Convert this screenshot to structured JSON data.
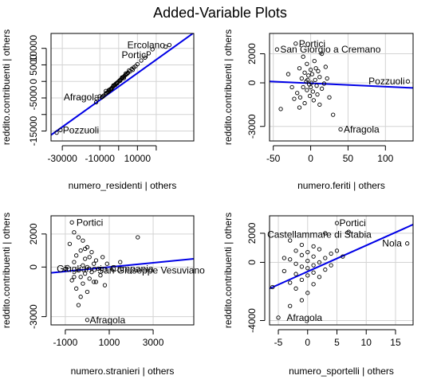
{
  "page_title": "Added-Variable Plots",
  "chart_data": [
    {
      "type": "scatter",
      "xlabel": "numero_residenti | others",
      "ylabel": "reddito.contribuenti | others",
      "xlim": [
        -36000,
        40000
      ],
      "ylim": [
        -18000,
        14500
      ],
      "xticks": [
        -30000,
        -10000,
        0,
        10000,
        20000
      ],
      "xtick_labels": [
        "-30000",
        "-10000",
        "",
        "10000",
        ""
      ],
      "yticks": [
        -15000,
        -10000,
        -5000,
        0,
        5000,
        10000
      ],
      "ytick_labels": [
        "-15000",
        "",
        "-5000",
        "0",
        "5000",
        "10000"
      ],
      "grid": true,
      "fit_line": {
        "x": [
          -36000,
          40000
        ],
        "y": [
          -16200,
          14700
        ]
      },
      "points": [
        [
          -33000,
          -15500
        ],
        [
          -31000,
          -14700
        ],
        [
          -12000,
          -6300
        ],
        [
          -9000,
          -4800
        ],
        [
          -8000,
          -4300
        ],
        [
          -7000,
          -3800
        ],
        [
          -6500,
          -3500
        ],
        [
          -6000,
          -3300
        ],
        [
          -5500,
          -3100
        ],
        [
          -5000,
          -2800
        ],
        [
          -4500,
          -2400
        ],
        [
          -4000,
          -2200
        ],
        [
          -3500,
          -1900
        ],
        [
          -3000,
          -1600
        ],
        [
          -2500,
          -1300
        ],
        [
          -2000,
          -1000
        ],
        [
          -1500,
          -700
        ],
        [
          -1000,
          -500
        ],
        [
          -500,
          -250
        ],
        [
          0,
          0
        ],
        [
          500,
          300
        ],
        [
          1000,
          500
        ],
        [
          1500,
          800
        ],
        [
          2000,
          1100
        ],
        [
          2500,
          1300
        ],
        [
          3000,
          1600
        ],
        [
          3500,
          1900
        ],
        [
          4000,
          2100
        ],
        [
          5000,
          2600
        ],
        [
          6000,
          3000
        ],
        [
          7000,
          3800
        ],
        [
          8000,
          4200
        ],
        [
          9000,
          4600
        ],
        [
          10000,
          5200
        ],
        [
          12000,
          6300
        ],
        [
          14000,
          7200
        ],
        [
          16000,
          8500
        ],
        [
          18000,
          9700
        ],
        [
          25000,
          10500
        ],
        [
          27000,
          11000
        ],
        [
          -10000,
          -4500
        ],
        [
          -8500,
          -4600
        ],
        [
          -6800,
          -2900
        ],
        [
          -5200,
          -2600
        ],
        [
          -3800,
          -2300
        ],
        [
          -2800,
          -1200
        ],
        [
          -1800,
          -1100
        ],
        [
          -800,
          -600
        ],
        [
          800,
          200
        ],
        [
          1800,
          1200
        ],
        [
          2800,
          1000
        ],
        [
          3800,
          2400
        ],
        [
          4500,
          2300
        ],
        [
          5500,
          3300
        ],
        [
          7500,
          3500
        ]
      ],
      "annotations": [
        {
          "label": "Ercolano",
          "x": 26000,
          "y": 11000,
          "anchor": "end"
        },
        {
          "label": "Portici",
          "x": 17000,
          "y": 8000,
          "anchor": "end"
        },
        {
          "label": "Afragola",
          "x": -9000,
          "y": -4700,
          "anchor": "end"
        },
        {
          "label": "Pozzuoli",
          "x": -31000,
          "y": -14700,
          "anchor": "start"
        }
      ]
    },
    {
      "type": "scatter",
      "xlabel": "numero.feriti | others",
      "ylabel": "reddito.contribuenti | others",
      "xlim": [
        -55,
        137
      ],
      "ylim": [
        -4000,
        3400
      ],
      "xticks": [
        -50,
        0,
        50,
        100
      ],
      "xtick_labels": [
        "-50",
        "0",
        "50",
        "100"
      ],
      "yticks": [
        -3000,
        0,
        2000
      ],
      "ytick_labels": [
        "-3000",
        "0",
        "2000"
      ],
      "grid": true,
      "fit_line": {
        "x": [
          -55,
          137
        ],
        "y": [
          100,
          -350
        ]
      },
      "points": [
        [
          -20,
          2700
        ],
        [
          -45,
          2300
        ],
        [
          15,
          2000
        ],
        [
          -10,
          1800
        ],
        [
          5,
          1500
        ],
        [
          -5,
          1300
        ],
        [
          20,
          1100
        ],
        [
          -15,
          1000
        ],
        [
          0,
          900
        ],
        [
          10,
          800
        ],
        [
          -8,
          700
        ],
        [
          2,
          600
        ],
        [
          -3,
          500
        ],
        [
          12,
          400
        ],
        [
          -12,
          300
        ],
        [
          6,
          200
        ],
        [
          -6,
          100
        ],
        [
          1,
          0
        ],
        [
          -2,
          -100
        ],
        [
          8,
          -200
        ],
        [
          -10,
          -300
        ],
        [
          15,
          -400
        ],
        [
          -5,
          -500
        ],
        [
          3,
          -600
        ],
        [
          -18,
          -700
        ],
        [
          9,
          -800
        ],
        [
          -1,
          -900
        ],
        [
          25,
          -1000
        ],
        [
          -22,
          -1100
        ],
        [
          4,
          -1200
        ],
        [
          -8,
          -1400
        ],
        [
          12,
          -1500
        ],
        [
          -15,
          -1700
        ],
        [
          -40,
          -1800
        ],
        [
          30,
          -2200
        ],
        [
          40,
          -3200
        ],
        [
          130,
          100
        ],
        [
          -30,
          600
        ],
        [
          18,
          -50
        ],
        [
          -25,
          -300
        ],
        [
          7,
          1000
        ],
        [
          -14,
          -1000
        ],
        [
          22,
          300
        ],
        [
          0,
          -300
        ],
        [
          -4,
          200
        ]
      ],
      "annotations": [
        {
          "label": "Portici",
          "x": -19,
          "y": 2700,
          "anchor": "start"
        },
        {
          "label": "San Giorgio a Cremano",
          "x": -44,
          "y": 2300,
          "anchor": "start"
        },
        {
          "label": "Pozzuoli",
          "x": 129,
          "y": 100,
          "anchor": "end"
        },
        {
          "label": "Afragola",
          "x": 41,
          "y": -3200,
          "anchor": "start"
        }
      ]
    },
    {
      "type": "scatter",
      "xlabel": "numero.stranieri | others",
      "ylabel": "reddito.contribuenti | others",
      "xlim": [
        -1650,
        4850
      ],
      "ylim": [
        -3500,
        3100
      ],
      "xticks": [
        -1000,
        1000,
        3000
      ],
      "xtick_labels": [
        "-1000",
        "1000",
        "3000"
      ],
      "yticks": [
        -3000,
        0,
        2000
      ],
      "ytick_labels": [
        "-3000",
        "0",
        "2000"
      ],
      "grid": true,
      "fit_line": {
        "x": [
          -1650,
          4850
        ],
        "y": [
          -350,
          500
        ]
      },
      "points": [
        [
          -700,
          2700
        ],
        [
          -600,
          2100
        ],
        [
          -400,
          1800
        ],
        [
          -200,
          1600
        ],
        [
          -800,
          1400
        ],
        [
          0,
          1200
        ],
        [
          -300,
          1000
        ],
        [
          200,
          900
        ],
        [
          -500,
          700
        ],
        [
          100,
          600
        ],
        [
          -100,
          500
        ],
        [
          400,
          400
        ],
        [
          -600,
          300
        ],
        [
          300,
          200
        ],
        [
          -200,
          100
        ],
        [
          0,
          0
        ],
        [
          500,
          -100
        ],
        [
          -400,
          -200
        ],
        [
          200,
          -300
        ],
        [
          -100,
          -400
        ],
        [
          600,
          -500
        ],
        [
          -300,
          -600
        ],
        [
          100,
          -700
        ],
        [
          -700,
          -800
        ],
        [
          300,
          -900
        ],
        [
          -200,
          -1000
        ],
        [
          800,
          -1100
        ],
        [
          -500,
          -1300
        ],
        [
          0,
          -1500
        ],
        [
          -300,
          -1800
        ],
        [
          -400,
          -2300
        ],
        [
          0,
          -3200
        ],
        [
          2300,
          1800
        ],
        [
          1500,
          300
        ],
        [
          900,
          200
        ],
        [
          -900,
          0
        ],
        [
          -1000,
          -100
        ],
        [
          1200,
          -100
        ],
        [
          700,
          600
        ],
        [
          -100,
          1100
        ],
        [
          400,
          -900
        ],
        [
          -600,
          -600
        ]
      ],
      "annotations": [
        {
          "label": "Portici",
          "x": -600,
          "y": 2700,
          "anchor": "start"
        },
        {
          "label": "Giugliano in Campania",
          "x": -1500,
          "y": -100,
          "anchor": "start"
        },
        {
          "label": "San Giuseppe Vesuviano",
          "x": 350,
          "y": -200,
          "anchor": "start"
        },
        {
          "label": "Afragola",
          "x": 0,
          "y": -3200,
          "anchor": "start"
        }
      ]
    },
    {
      "type": "scatter",
      "xlabel": "numero_sportelli | others",
      "ylabel": "reddito.contribuenti | others",
      "xlim": [
        -6.5,
        18
      ],
      "ylim": [
        -4300,
        3200
      ],
      "xticks": [
        -5,
        0,
        5,
        10,
        15
      ],
      "xtick_labels": [
        "-5",
        "0",
        "5",
        "10",
        "15"
      ],
      "yticks": [
        -4000,
        0,
        2000
      ],
      "ytick_labels": [
        "-4000",
        "0",
        "2000"
      ],
      "grid": true,
      "fit_line": {
        "x": [
          -6.5,
          18
        ],
        "y": [
          -1800,
          2600
        ]
      },
      "points": [
        [
          5,
          2700
        ],
        [
          3,
          2000
        ],
        [
          7,
          2100
        ],
        [
          17,
          1300
        ],
        [
          -3,
          1500
        ],
        [
          -1,
          1200
        ],
        [
          1,
          1100
        ],
        [
          2,
          900
        ],
        [
          -2,
          800
        ],
        [
          0,
          700
        ],
        [
          4,
          600
        ],
        [
          -1,
          500
        ],
        [
          1,
          400
        ],
        [
          3,
          300
        ],
        [
          -3,
          200
        ],
        [
          0,
          100
        ],
        [
          2,
          0
        ],
        [
          -2,
          -100
        ],
        [
          1,
          -200
        ],
        [
          -1,
          -300
        ],
        [
          0,
          -400
        ],
        [
          3,
          -500
        ],
        [
          -4,
          -600
        ],
        [
          1,
          -700
        ],
        [
          -2,
          -800
        ],
        [
          0,
          -900
        ],
        [
          2,
          -1000
        ],
        [
          -1,
          -1200
        ],
        [
          -3,
          -1400
        ],
        [
          1,
          -1500
        ],
        [
          -2,
          -1800
        ],
        [
          0,
          -2100
        ],
        [
          -1,
          -2600
        ],
        [
          -3,
          -3000
        ],
        [
          -5,
          -3800
        ],
        [
          6,
          400
        ],
        [
          4,
          -200
        ],
        [
          -4,
          300
        ],
        [
          5,
          800
        ],
        [
          -6,
          -1700
        ]
      ],
      "annotations": [
        {
          "label": "Portici",
          "x": 5,
          "y": 2700,
          "anchor": "start"
        },
        {
          "label": "Castellammare di Stabia",
          "x": 2,
          "y": 1900,
          "anchor": "middle"
        },
        {
          "label": "Nola",
          "x": 16.5,
          "y": 1300,
          "anchor": "end"
        },
        {
          "label": "Afragola",
          "x": -4,
          "y": -3800,
          "anchor": "start"
        }
      ]
    }
  ]
}
